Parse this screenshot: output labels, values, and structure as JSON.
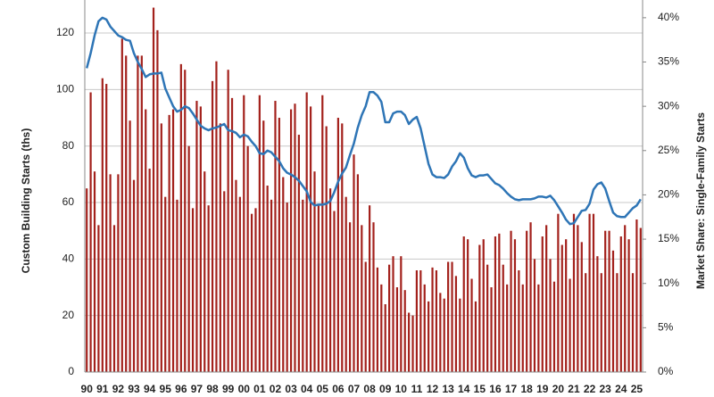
{
  "chart_data": {
    "type": "bar_line",
    "y_label": "Custom Building Starts (ths)",
    "y2_label": "Market Share: Single-Family Starts",
    "categories": [
      "90",
      null,
      null,
      null,
      "91",
      null,
      null,
      null,
      "92",
      null,
      null,
      null,
      "93",
      null,
      null,
      null,
      "94",
      null,
      null,
      null,
      "95",
      null,
      null,
      null,
      "96",
      null,
      null,
      null,
      "97",
      null,
      null,
      null,
      "98",
      null,
      null,
      null,
      "99",
      null,
      null,
      null,
      "00",
      null,
      null,
      null,
      "01",
      null,
      null,
      null,
      "02",
      null,
      null,
      null,
      "03",
      null,
      null,
      null,
      "04",
      null,
      null,
      null,
      "05",
      null,
      null,
      null,
      "06",
      null,
      null,
      null,
      "07",
      null,
      null,
      null,
      "08",
      null,
      null,
      null,
      "09",
      null,
      null,
      null,
      "10",
      null,
      null,
      null,
      "11",
      null,
      null,
      null,
      "12",
      null,
      null,
      null,
      "13",
      null,
      null,
      null,
      "14",
      null,
      null,
      null,
      "15",
      null,
      null,
      null,
      "16",
      null,
      null,
      null,
      "17",
      null,
      null,
      null,
      "18",
      null,
      null,
      null,
      "19",
      null,
      null,
      null,
      "20",
      null,
      null,
      null,
      "21",
      null,
      null,
      null,
      "22",
      null,
      null,
      null,
      "23",
      null,
      null,
      null,
      "24",
      null,
      null,
      null,
      "25",
      null
    ],
    "series": [
      {
        "type": "bar",
        "color": "#a3211c",
        "values": [
          65,
          99,
          71,
          52,
          104,
          102,
          70,
          52,
          70,
          118,
          112,
          89,
          68,
          112,
          112,
          93,
          72,
          129,
          121,
          88,
          62,
          91,
          93,
          61,
          109,
          107,
          80,
          58,
          96,
          94,
          71,
          59,
          103,
          110,
          88,
          64,
          107,
          97,
          68,
          62,
          98,
          80,
          56,
          58,
          98,
          89,
          66,
          61,
          96,
          90,
          69,
          60,
          93,
          95,
          84,
          61,
          99,
          94,
          71,
          59,
          98,
          87,
          65,
          57,
          90,
          88,
          62,
          53,
          77,
          70,
          52,
          39,
          59,
          53,
          37,
          31,
          24,
          38,
          41,
          30,
          41,
          29,
          21,
          20,
          36,
          36,
          31,
          25,
          37,
          36,
          28,
          26,
          39,
          39,
          34,
          26,
          48,
          47,
          33,
          25,
          45,
          47,
          38,
          30,
          48,
          49,
          38,
          31,
          50,
          47,
          36,
          31,
          50,
          53,
          40,
          31,
          48,
          52,
          40,
          32,
          56,
          45,
          47,
          33,
          56,
          52,
          46,
          35,
          56,
          56,
          41,
          35,
          50,
          50,
          43,
          35,
          48,
          52,
          47,
          35,
          54,
          51
        ]
      },
      {
        "type": "line",
        "axis": "y2",
        "color": "#2e75b6",
        "values": [
          34.3,
          36,
          38,
          39.6,
          40,
          39.8,
          39,
          38.5,
          38,
          37.8,
          37.5,
          37.4,
          36,
          35,
          34.2,
          33.3,
          33.6,
          33.7,
          33.7,
          33.8,
          32,
          31,
          30,
          29.4,
          29.6,
          30,
          29.8,
          29.2,
          28.5,
          27.8,
          27.5,
          27.3,
          27.5,
          27.6,
          27.8,
          28,
          27.3,
          27.2,
          27,
          26.5,
          26.8,
          26.6,
          26,
          25.5,
          24.7,
          24.6,
          25,
          24.8,
          24.3,
          23.8,
          23,
          22.5,
          22.3,
          22,
          21.6,
          21,
          20.4,
          19.2,
          18.8,
          18.9,
          18.9,
          19,
          19.3,
          20.3,
          21.5,
          22.4,
          23.1,
          24.5,
          25.8,
          27.6,
          29,
          30,
          31.6,
          31.6,
          31.2,
          30.5,
          28.2,
          28.2,
          29.2,
          29.4,
          29.4,
          29,
          28,
          28.5,
          28.8,
          27.5,
          25.5,
          23.5,
          22.3,
          22,
          22,
          21.9,
          22.3,
          23.2,
          23.8,
          24.7,
          24.2,
          23,
          22.2,
          22,
          22.2,
          22.2,
          22.3,
          21.8,
          21.3,
          21.1,
          20.7,
          20.2,
          19.8,
          19.5,
          19.4,
          19.5,
          19.5,
          19.5,
          19.6,
          19.8,
          19.8,
          19.7,
          19.9,
          19.4,
          18.7,
          18,
          17.2,
          16.7,
          16.8,
          17.5,
          18.2,
          18.3,
          19,
          20.6,
          21.2,
          21.4,
          20.7,
          19.3,
          18,
          17.6,
          17.5,
          17.5,
          18,
          18.5,
          18.8,
          19.5
        ]
      }
    ],
    "ylim": [
      0,
      131.7
    ],
    "yticks": [
      0,
      20,
      40,
      60,
      80,
      100,
      120
    ],
    "y2lim": [
      0,
      42
    ],
    "y2ticks": [
      {
        "value": 0,
        "label": "0%"
      },
      {
        "value": 5,
        "label": "5%"
      },
      {
        "value": 10,
        "label": "10%"
      },
      {
        "value": 15,
        "label": "15%"
      },
      {
        "value": 20,
        "label": "20%"
      },
      {
        "value": 25,
        "label": "25%"
      },
      {
        "value": 30,
        "label": "30%"
      },
      {
        "value": 35,
        "label": "35%"
      },
      {
        "value": 40,
        "label": "40%"
      }
    ],
    "grid": true
  }
}
